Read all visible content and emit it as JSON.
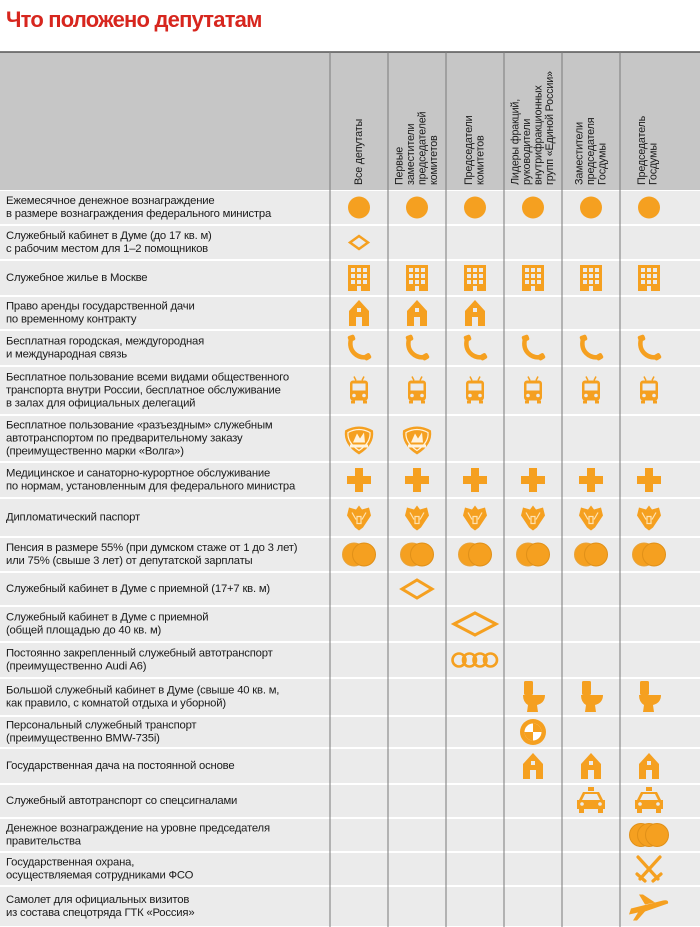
{
  "title": "Что положено депутатам",
  "columns": [
    [
      "Все депутаты"
    ],
    [
      "Первые",
      "заместители",
      "председателей",
      "комитетов"
    ],
    [
      "Председатели",
      "комитетов"
    ],
    [
      "Лидеры фракций,",
      "руководители",
      "внутрифракционных",
      "групп «Единой России»"
    ],
    [
      "Заместители",
      "председателя",
      "Госдумы"
    ],
    [
      "Председатель",
      "Госдумы"
    ]
  ],
  "rows": [
    [
      "Ежемесячное денежное вознаграждение",
      "в размере вознаграждения федерального министра"
    ],
    [
      "Служебный кабинет в Думе (до 17 кв. м)",
      "с рабочим местом для 1–2 помощников"
    ],
    [
      "Служебное жилье в Москве"
    ],
    [
      "Право аренды государственной дачи",
      "по временному контракту"
    ],
    [
      "Бесплатная городская, междугородная",
      "и международная связь"
    ],
    [
      "Бесплатное пользование всеми видами общественного",
      "транспорта внутри России, бесплатное обслуживание",
      "в залах для официальных делегаций"
    ],
    [
      "Бесплатное пользование «разъездным» служебным",
      "автотранспортом по предварительному заказу",
      "(преимущественно марки «Волга»)"
    ],
    [
      "Медицинское и санаторно-курортное обслуживание",
      "по нормам, установленным для федерального министра"
    ],
    [
      "Дипломатический паспорт"
    ],
    [
      "Пенсия в размере 55% (при думском стаже от 1 до 3 лет)",
      "или 75% (свыше 3 лет) от депутатской зарплаты"
    ],
    [
      "Служебный кабинет в Думе с приемной (17+7 кв. м)"
    ],
    [
      "Служебный кабинет в Думе с приемной",
      "(общей площадью до 40 кв. м)"
    ],
    [
      "Постоянно закрепленный служебный автотранспорт",
      "(преимущественно Audi A6)"
    ],
    [
      "Большой служебный кабинет в Думе (свыше 40 кв. м,",
      "как правило, с комнатой отдыха и уборной)"
    ],
    [
      "Персональный служебный транспорт",
      "(преимущественно BMW-735i)"
    ],
    [
      "Государственная дача на постоянной основе"
    ],
    [
      "Служебный автотранспорт со спецсигналами"
    ],
    [
      "Денежное вознаграждение на уровне председателя",
      "правительства"
    ],
    [
      "Государственная охрана,",
      "осуществляемая сотрудниками ФСО"
    ],
    [
      "Самолет для официальных визитов",
      "из состава спецотряда ГТК «Россия»"
    ]
  ]
}
